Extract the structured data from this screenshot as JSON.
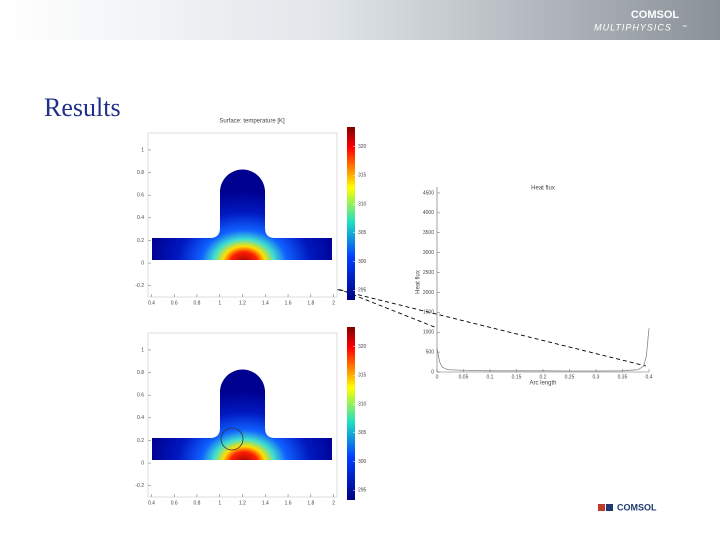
{
  "header": {
    "brand": "COMSOL",
    "product": "MULTIPHYSICS",
    "mark": "™"
  },
  "title": "Results",
  "footer": {
    "brand": "COMSOL"
  },
  "chart_data": [
    {
      "type": "heatmap",
      "title": "Surface: temperature [K]",
      "xlim": [
        0.37,
        2.03
      ],
      "ylim": [
        -0.3,
        1.15
      ],
      "xticks": [
        0.4,
        0.6,
        0.8,
        1,
        1.2,
        1.4,
        1.6,
        1.8,
        2
      ],
      "yticks": [
        1,
        0.8,
        0.6,
        0.4,
        0.2,
        0,
        -0.2
      ],
      "clim": [
        293.3,
        323.4
      ],
      "cticks": [
        320,
        315,
        310,
        305,
        300,
        295
      ]
    },
    {
      "type": "heatmap",
      "xlim": [
        0.37,
        2.03
      ],
      "ylim": [
        -0.3,
        1.15
      ],
      "xticks": [
        0.4,
        0.6,
        0.8,
        1,
        1.2,
        1.4,
        1.6,
        1.8,
        2
      ],
      "yticks": [
        1,
        0.8,
        0.6,
        0.4,
        0.2,
        0,
        -0.2
      ],
      "clim": [
        293.3,
        323.4
      ],
      "cticks": [
        320,
        315,
        310,
        305,
        300,
        295
      ]
    },
    {
      "type": "line",
      "title": "Heat flux",
      "xlabel": "Arc length",
      "ylabel": "Heat flux",
      "x": [
        0,
        0.005,
        0.01,
        0.02,
        0.05,
        0.1,
        0.15,
        0.2,
        0.25,
        0.3,
        0.35,
        0.38,
        0.39,
        0.395,
        0.4
      ],
      "values": [
        600,
        250,
        120,
        60,
        40,
        30,
        30,
        30,
        25,
        25,
        30,
        60,
        150,
        400,
        1100
      ],
      "color": "#888888",
      "xlim": [
        0,
        0.4
      ],
      "ylim": [
        0,
        4650
      ],
      "xticks": [
        0,
        0.05,
        0.1,
        0.15,
        0.2,
        0.25,
        0.3,
        0.35,
        0.4
      ],
      "yticks": [
        0,
        500,
        1000,
        1500,
        2000,
        2500,
        3000,
        3500,
        4000,
        4500
      ]
    }
  ]
}
